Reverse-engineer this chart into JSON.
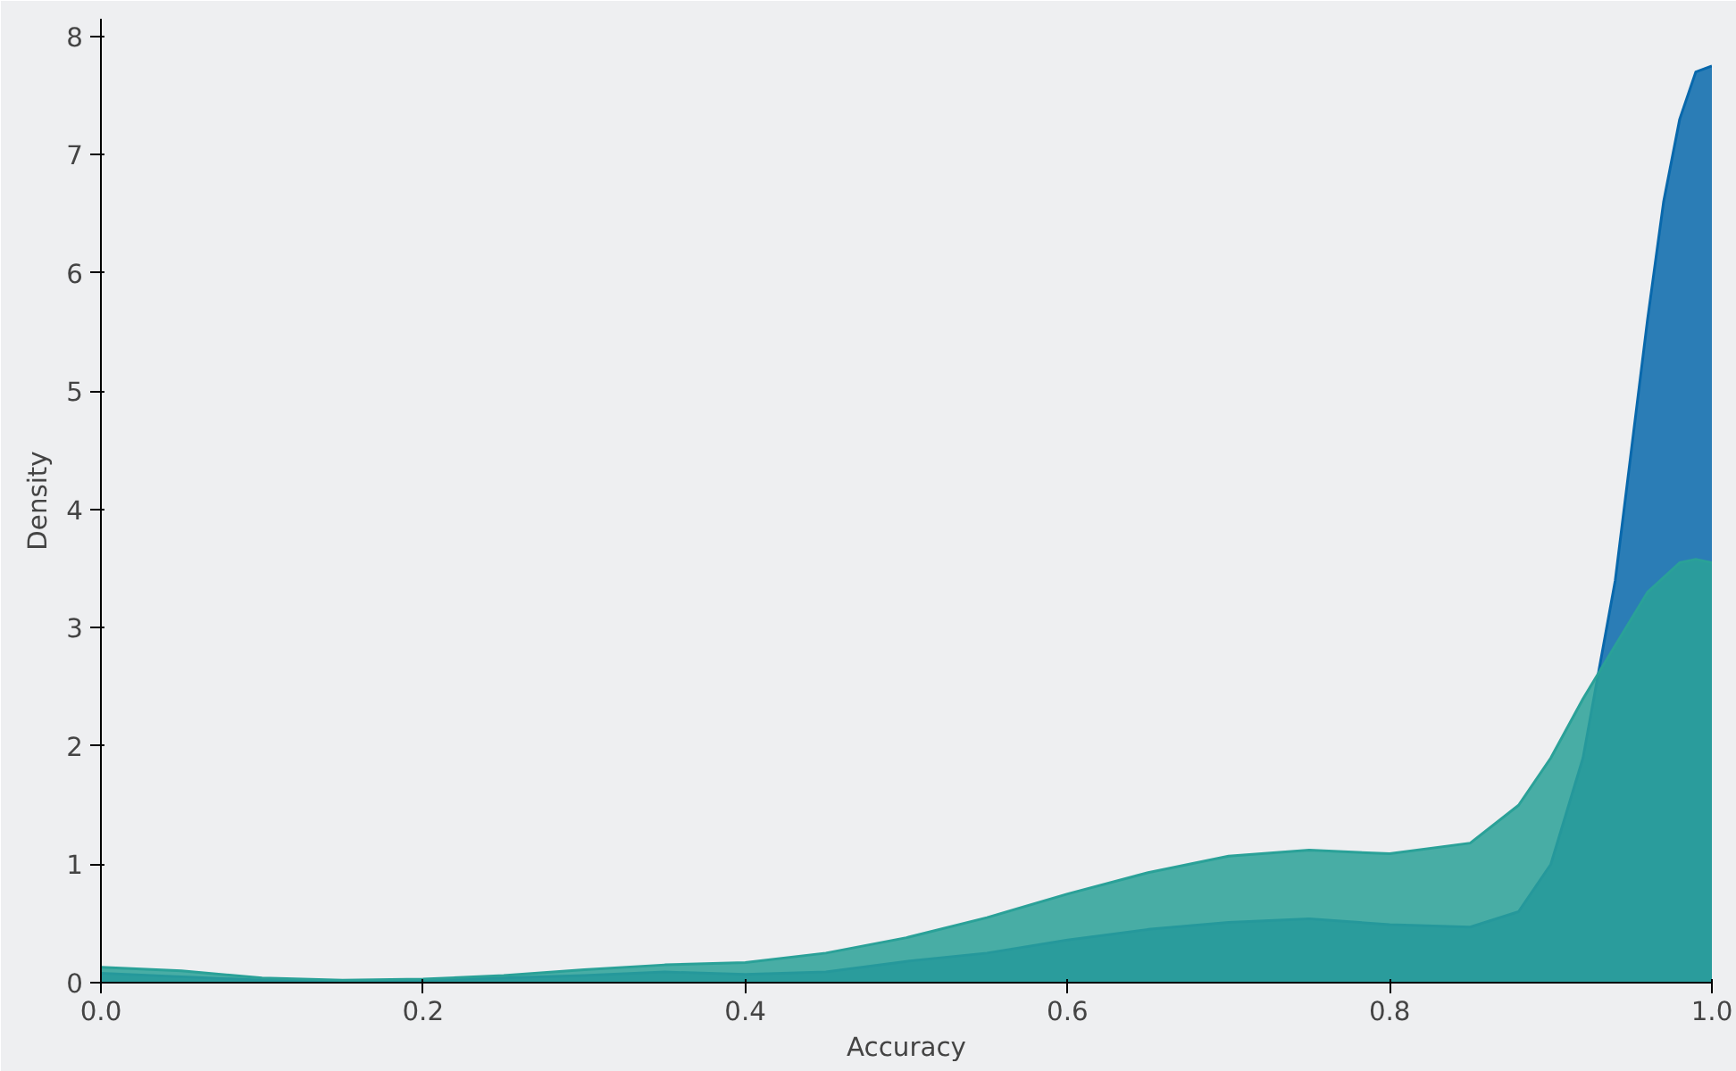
{
  "chart_data": {
    "type": "area",
    "xlabel": "Accuracy",
    "ylabel": "Density",
    "xlim": [
      0,
      1
    ],
    "xticks": [
      {
        "value": 0,
        "label": "0.0"
      },
      0.2,
      0.4,
      0.6,
      0.8,
      {
        "value": 1,
        "label": "1.0"
      }
    ],
    "ylim": [
      0,
      8.15
    ],
    "yticks": [
      0,
      1,
      2,
      3,
      4,
      5,
      6,
      7,
      8
    ],
    "grid": false,
    "series": [
      {
        "color": "#0868ac",
        "x": [
          0,
          0.05,
          0.1,
          0.15,
          0.2,
          0.25,
          0.3,
          0.35,
          0.4,
          0.45,
          0.5,
          0.55,
          0.6,
          0.65,
          0.7,
          0.75,
          0.8,
          0.85,
          0.88,
          0.9,
          0.92,
          0.94,
          0.95,
          0.96,
          0.97,
          0.98,
          0.99,
          1.0
        ],
        "values": [
          0.08,
          0.05,
          0.02,
          0.01,
          0.02,
          0.04,
          0.06,
          0.09,
          0.07,
          0.09,
          0.18,
          0.25,
          0.36,
          0.45,
          0.51,
          0.54,
          0.49,
          0.47,
          0.6,
          1.0,
          1.9,
          3.4,
          4.5,
          5.6,
          6.6,
          7.3,
          7.7,
          7.75
        ]
      },
      {
        "color": "#2aa198",
        "x": [
          0,
          0.05,
          0.1,
          0.15,
          0.2,
          0.25,
          0.3,
          0.35,
          0.4,
          0.45,
          0.5,
          0.55,
          0.6,
          0.65,
          0.7,
          0.75,
          0.8,
          0.85,
          0.88,
          0.9,
          0.92,
          0.94,
          0.96,
          0.98,
          0.99,
          1.0
        ],
        "values": [
          0.13,
          0.1,
          0.04,
          0.02,
          0.03,
          0.06,
          0.11,
          0.15,
          0.17,
          0.25,
          0.38,
          0.55,
          0.75,
          0.93,
          1.07,
          1.12,
          1.09,
          1.18,
          1.5,
          1.9,
          2.4,
          2.85,
          3.3,
          3.55,
          3.58,
          3.55
        ]
      }
    ]
  }
}
